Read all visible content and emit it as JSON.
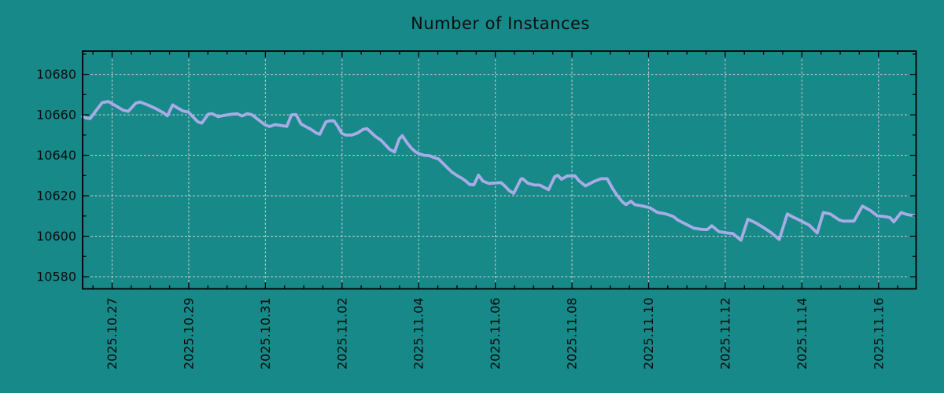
{
  "colors": {
    "background": "#178989",
    "line": "#A8ACE6",
    "grid": "#C6CAC6",
    "axis": "#000000",
    "text": "#0d0d0d"
  },
  "chart_data": {
    "type": "line",
    "title": "Number of Instances",
    "xlabel": "",
    "ylabel": "",
    "legend": "none",
    "grid": "dashed",
    "x_unit": "days relative to 2025.10.27 00:00",
    "xlim": [
      -0.77,
      20.98
    ],
    "ylim": [
      10574,
      10691.5
    ],
    "x_major_ticks": [
      {
        "t": 0,
        "label": "2025.10.27"
      },
      {
        "t": 2,
        "label": "2025.10.29"
      },
      {
        "t": 4,
        "label": "2025.10.31"
      },
      {
        "t": 6,
        "label": "2025.11.02"
      },
      {
        "t": 8,
        "label": "2025.11.04"
      },
      {
        "t": 10,
        "label": "2025.11.06"
      },
      {
        "t": 12,
        "label": "2025.11.08"
      },
      {
        "t": 14,
        "label": "2025.11.10"
      },
      {
        "t": 16,
        "label": "2025.11.12"
      },
      {
        "t": 18,
        "label": "2025.11.14"
      },
      {
        "t": 20,
        "label": "2025.11.16"
      }
    ],
    "x_minor_interval": 0.5,
    "y_major_ticks": [
      {
        "v": 10580,
        "label": "10580"
      },
      {
        "v": 10600,
        "label": "10600"
      },
      {
        "v": 10620,
        "label": "10620"
      },
      {
        "v": 10640,
        "label": "10640"
      },
      {
        "v": 10660,
        "label": "10660"
      },
      {
        "v": 10680,
        "label": "10680"
      }
    ],
    "y_minor_interval": 10,
    "series": [
      {
        "name": "instances",
        "points": [
          [
            -0.77,
            10659.1
          ],
          [
            -0.67,
            10658.4
          ],
          [
            -0.57,
            10658.2
          ],
          [
            -0.42,
            10662.0
          ],
          [
            -0.26,
            10666.0
          ],
          [
            -0.1,
            10666.6
          ],
          [
            0.11,
            10664.3
          ],
          [
            0.29,
            10662.3
          ],
          [
            0.42,
            10661.7
          ],
          [
            0.62,
            10665.8
          ],
          [
            0.73,
            10666.3
          ],
          [
            0.93,
            10664.9
          ],
          [
            1.13,
            10663.2
          ],
          [
            1.34,
            10661.0
          ],
          [
            1.44,
            10659.5
          ],
          [
            1.58,
            10664.9
          ],
          [
            1.69,
            10663.6
          ],
          [
            1.85,
            10661.9
          ],
          [
            1.99,
            10661.4
          ],
          [
            2.14,
            10658.4
          ],
          [
            2.24,
            10656.5
          ],
          [
            2.34,
            10655.9
          ],
          [
            2.51,
            10660.4
          ],
          [
            2.61,
            10660.6
          ],
          [
            2.77,
            10659.1
          ],
          [
            2.92,
            10659.7
          ],
          [
            3.12,
            10660.3
          ],
          [
            3.27,
            10660.5
          ],
          [
            3.39,
            10659.4
          ],
          [
            3.53,
            10660.6
          ],
          [
            3.64,
            10660.1
          ],
          [
            3.84,
            10657.2
          ],
          [
            3.98,
            10655.2
          ],
          [
            4.11,
            10654.2
          ],
          [
            4.25,
            10655.2
          ],
          [
            4.39,
            10654.8
          ],
          [
            4.56,
            10654.3
          ],
          [
            4.68,
            10660.0
          ],
          [
            4.8,
            10660.1
          ],
          [
            4.93,
            10655.5
          ],
          [
            5.07,
            10654.0
          ],
          [
            5.17,
            10653.0
          ],
          [
            5.34,
            10650.9
          ],
          [
            5.42,
            10650.4
          ],
          [
            5.58,
            10656.5
          ],
          [
            5.69,
            10657.1
          ],
          [
            5.79,
            10657.0
          ],
          [
            5.89,
            10654.3
          ],
          [
            5.99,
            10650.9
          ],
          [
            6.09,
            10650.0
          ],
          [
            6.26,
            10650.0
          ],
          [
            6.4,
            10651.0
          ],
          [
            6.55,
            10652.8
          ],
          [
            6.65,
            10653.2
          ],
          [
            6.75,
            10651.5
          ],
          [
            6.87,
            10649.3
          ],
          [
            7.02,
            10647.4
          ],
          [
            7.14,
            10645.0
          ],
          [
            7.24,
            10643.0
          ],
          [
            7.37,
            10641.6
          ],
          [
            7.49,
            10648.0
          ],
          [
            7.57,
            10649.7
          ],
          [
            7.7,
            10646.1
          ],
          [
            7.82,
            10643.3
          ],
          [
            7.92,
            10641.7
          ],
          [
            8.0,
            10640.8
          ],
          [
            8.14,
            10640.0
          ],
          [
            8.29,
            10639.8
          ],
          [
            8.41,
            10638.8
          ],
          [
            8.52,
            10638.2
          ],
          [
            8.66,
            10635.5
          ],
          [
            8.86,
            10631.8
          ],
          [
            9.01,
            10629.9
          ],
          [
            9.13,
            10628.6
          ],
          [
            9.23,
            10627.3
          ],
          [
            9.33,
            10625.6
          ],
          [
            9.44,
            10625.4
          ],
          [
            9.56,
            10630.2
          ],
          [
            9.68,
            10627.2
          ],
          [
            9.83,
            10626.1
          ],
          [
            9.99,
            10626.3
          ],
          [
            10.15,
            10626.5
          ],
          [
            10.26,
            10624.6
          ],
          [
            10.36,
            10622.6
          ],
          [
            10.48,
            10621.2
          ],
          [
            10.67,
            10628.3
          ],
          [
            10.71,
            10628.5
          ],
          [
            10.85,
            10626.2
          ],
          [
            11.02,
            10625.3
          ],
          [
            11.16,
            10625.3
          ],
          [
            11.39,
            10623.0
          ],
          [
            11.55,
            10629.4
          ],
          [
            11.63,
            10630.1
          ],
          [
            11.73,
            10628.2
          ],
          [
            11.88,
            10629.8
          ],
          [
            12.08,
            10629.8
          ],
          [
            12.18,
            10627.5
          ],
          [
            12.35,
            10624.9
          ],
          [
            12.59,
            10627.2
          ],
          [
            12.76,
            10628.4
          ],
          [
            12.92,
            10628.4
          ],
          [
            13.06,
            10623.6
          ],
          [
            13.17,
            10620.4
          ],
          [
            13.31,
            10617.1
          ],
          [
            13.41,
            10615.6
          ],
          [
            13.54,
            10617.3
          ],
          [
            13.64,
            10615.6
          ],
          [
            13.82,
            10615.0
          ],
          [
            14.03,
            10614.1
          ],
          [
            14.23,
            10611.8
          ],
          [
            14.44,
            10611.1
          ],
          [
            14.64,
            10609.8
          ],
          [
            14.77,
            10607.9
          ],
          [
            14.97,
            10606.0
          ],
          [
            15.18,
            10604.0
          ],
          [
            15.38,
            10603.4
          ],
          [
            15.53,
            10603.3
          ],
          [
            15.65,
            10605.2
          ],
          [
            15.83,
            10602.3
          ],
          [
            16.04,
            10601.6
          ],
          [
            16.2,
            10601.3
          ],
          [
            16.41,
            10598.0
          ],
          [
            16.59,
            10608.4
          ],
          [
            16.8,
            10606.6
          ],
          [
            17.0,
            10604.3
          ],
          [
            17.21,
            10601.6
          ],
          [
            17.41,
            10598.4
          ],
          [
            17.62,
            10611.0
          ],
          [
            17.78,
            10609.4
          ],
          [
            17.99,
            10607.5
          ],
          [
            18.19,
            10605.5
          ],
          [
            18.4,
            10601.6
          ],
          [
            18.56,
            10611.7
          ],
          [
            18.74,
            10611.0
          ],
          [
            18.97,
            10608.1
          ],
          [
            19.07,
            10607.5
          ],
          [
            19.36,
            10607.5
          ],
          [
            19.58,
            10614.9
          ],
          [
            19.79,
            10612.7
          ],
          [
            19.97,
            10610.1
          ],
          [
            20.18,
            10609.7
          ],
          [
            20.3,
            10609.2
          ],
          [
            20.4,
            10607.1
          ],
          [
            20.59,
            10611.7
          ],
          [
            20.75,
            10610.7
          ],
          [
            20.96,
            10610.1
          ]
        ]
      }
    ]
  }
}
